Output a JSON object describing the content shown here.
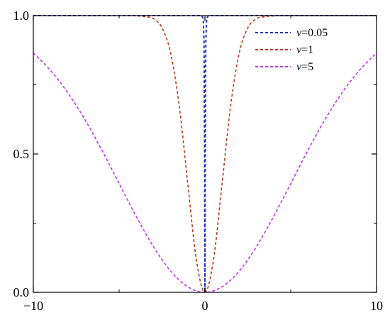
{
  "chart_data": {
    "type": "line",
    "title": "",
    "xlabel": "",
    "ylabel": "",
    "xlim": [
      -10,
      10
    ],
    "ylim": [
      0.0,
      1.0
    ],
    "xticks": [
      -10,
      0,
      10
    ],
    "yticks": [
      0.0,
      0.5,
      1.0
    ],
    "x_tick_labels": [
      "−10",
      "0",
      "10"
    ],
    "y_tick_labels": [
      "0.0",
      "0.5",
      "1.0"
    ],
    "grid": false,
    "legend_placement": "top-right",
    "series": [
      {
        "name": "v=0.05",
        "legend_var": "v",
        "legend_value": "=0.05",
        "color": "#1f2fd0",
        "dash": "dashed",
        "x": [
          -10,
          -1,
          -0.5,
          -0.3,
          -0.2,
          -0.1,
          -0.05,
          -0.02,
          0,
          0.02,
          0.05,
          0.1,
          0.2,
          0.3,
          0.5,
          1,
          10
        ],
        "y": [
          1.0,
          1.0,
          1.0,
          1.0,
          1.0,
          0.99,
          0.9,
          0.5,
          0.0,
          0.5,
          0.9,
          0.99,
          1.0,
          1.0,
          1.0,
          1.0,
          1.0
        ]
      },
      {
        "name": "v=1",
        "legend_var": "v",
        "legend_value": "=1",
        "color": "#c0391b",
        "dash": "dashed",
        "x": [
          -10,
          -5,
          -4,
          -3.5,
          -3,
          -2.5,
          -2,
          -1.5,
          -1,
          -0.5,
          0,
          0.5,
          1,
          1.5,
          2,
          2.5,
          3,
          3.5,
          4,
          5,
          10
        ],
        "y": [
          1.0,
          1.0,
          0.999,
          0.996,
          0.989,
          0.956,
          0.865,
          0.675,
          0.393,
          0.118,
          0.0,
          0.118,
          0.393,
          0.675,
          0.865,
          0.956,
          0.989,
          0.996,
          0.999,
          1.0,
          1.0
        ],
        "_note": ""
      },
      {
        "name": "v=5",
        "legend_var": "v",
        "legend_value": "=5",
        "color": "#c231e6",
        "dash": "dashed",
        "x": [
          -10,
          -9,
          -8,
          -7,
          -6,
          -5,
          -4,
          -3,
          -2,
          -1,
          0,
          1,
          2,
          3,
          4,
          5,
          6,
          7,
          8,
          9,
          10
        ],
        "y": [
          0.865,
          0.802,
          0.722,
          0.625,
          0.513,
          0.393,
          0.274,
          0.165,
          0.077,
          0.02,
          0.0,
          0.02,
          0.077,
          0.165,
          0.274,
          0.393,
          0.513,
          0.625,
          0.722,
          0.802,
          0.865
        ]
      }
    ]
  }
}
